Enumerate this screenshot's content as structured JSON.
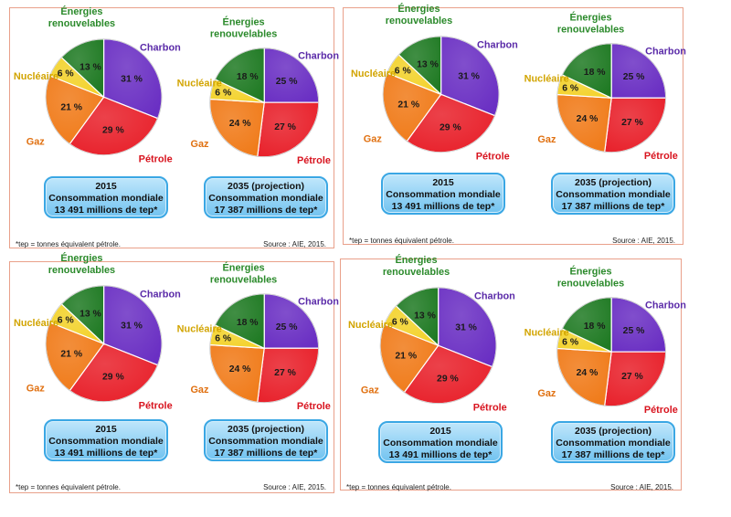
{
  "panels": [
    {
      "id": "tl",
      "box": "tl"
    },
    {
      "id": "tr",
      "box": "tr"
    },
    {
      "id": "bl",
      "box": "bl"
    },
    {
      "id": "br",
      "box": "br"
    }
  ],
  "chart_data": [
    {
      "type": "pie",
      "title": "2015",
      "subtitle": "Consommation mondiale",
      "total": "13 491 millions de tep*",
      "categories": [
        "Charbon",
        "Pétrole",
        "Gaz",
        "Nucléaire",
        "Énergies renouvelables"
      ],
      "values": [
        31,
        29,
        21,
        6,
        13
      ],
      "value_labels": [
        "31 %",
        "29 %",
        "21 %",
        "6 %",
        "13 %"
      ],
      "colors": [
        "#6a2fc3",
        "#e8202a",
        "#f07a18",
        "#f3d22a",
        "#1f7a23"
      ]
    },
    {
      "type": "pie",
      "title": "2035 (projection)",
      "subtitle": "Consommation mondiale",
      "total": "17 387 millions de tep*",
      "categories": [
        "Charbon",
        "Pétrole",
        "Gaz",
        "Nucléaire",
        "Énergies renouvelables"
      ],
      "values": [
        25,
        27,
        24,
        6,
        18
      ],
      "value_labels": [
        "25 %",
        "27 %",
        "24 %",
        "6 %",
        "18 %"
      ],
      "colors": [
        "#6a2fc3",
        "#e8202a",
        "#f07a18",
        "#f3d22a",
        "#1f7a23"
      ]
    }
  ],
  "labels": {
    "renew_line1": "Énergies",
    "renew_line2": "renouvelables",
    "charbon": "Charbon",
    "petrole": "Pétrole",
    "gaz": "Gaz",
    "nucleaire": "Nucléaire"
  },
  "label_colors": {
    "renew": "#2b8a2b",
    "charbon": "#5a2aa8",
    "petrole": "#d8141f",
    "gaz": "#e07010",
    "nucleaire": "#d2a400"
  },
  "footer": {
    "note": "*tep = tonnes équivalent pétrole.",
    "source": "Source : AIE, 2015."
  }
}
